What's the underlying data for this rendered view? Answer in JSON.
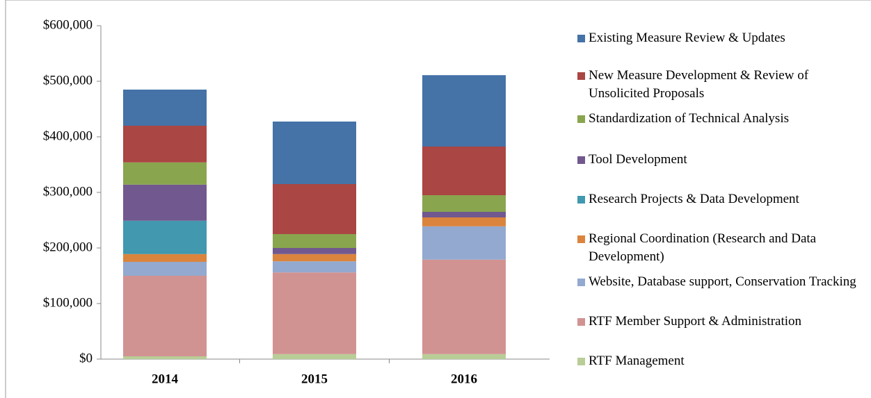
{
  "chart_data": {
    "type": "stacked_bar",
    "categories": [
      "2014",
      "2015",
      "2016"
    ],
    "series": [
      {
        "name": "RTF Management",
        "color": "#b9cd96",
        "values": [
          5000,
          9000,
          9000
        ]
      },
      {
        "name": "RTF Member Support & Administration",
        "color": "#d19392",
        "values": [
          145000,
          147000,
          170000
        ]
      },
      {
        "name": "Website, Database support, Conservation Tracking",
        "color": "#93a9cf",
        "values": [
          25000,
          20000,
          60000
        ]
      },
      {
        "name": "Regional Coordination (Research and Data Development)",
        "color": "#db843d",
        "values": [
          14000,
          13000,
          16000
        ]
      },
      {
        "name": "Research Projects & Data Development",
        "color": "#4198af",
        "values": [
          60000,
          0,
          0
        ]
      },
      {
        "name": "Tool Development",
        "color": "#71588f",
        "values": [
          65000,
          11000,
          10000
        ]
      },
      {
        "name": "Standardization of Technical Analysis",
        "color": "#89a54e",
        "values": [
          40000,
          25000,
          30000
        ]
      },
      {
        "name": "New Measure Development & Review of Unsolicited Proposals",
        "color": "#aa4643",
        "values": [
          66000,
          90000,
          87500
        ]
      },
      {
        "name": "Existing Measure Review & Updates",
        "color": "#4572a7",
        "values": [
          65000,
          112500,
          128500
        ]
      }
    ],
    "ylim": [
      0,
      600000
    ],
    "yticks": [
      {
        "value": 0,
        "label": "$0"
      },
      {
        "value": 100000,
        "label": "$100,000"
      },
      {
        "value": 200000,
        "label": "$200,000"
      },
      {
        "value": 300000,
        "label": "$300,000"
      },
      {
        "value": 400000,
        "label": "$400,000"
      },
      {
        "value": 500000,
        "label": "$500,000"
      },
      {
        "value": 600000,
        "label": "$600,000"
      }
    ],
    "legend": "right"
  }
}
